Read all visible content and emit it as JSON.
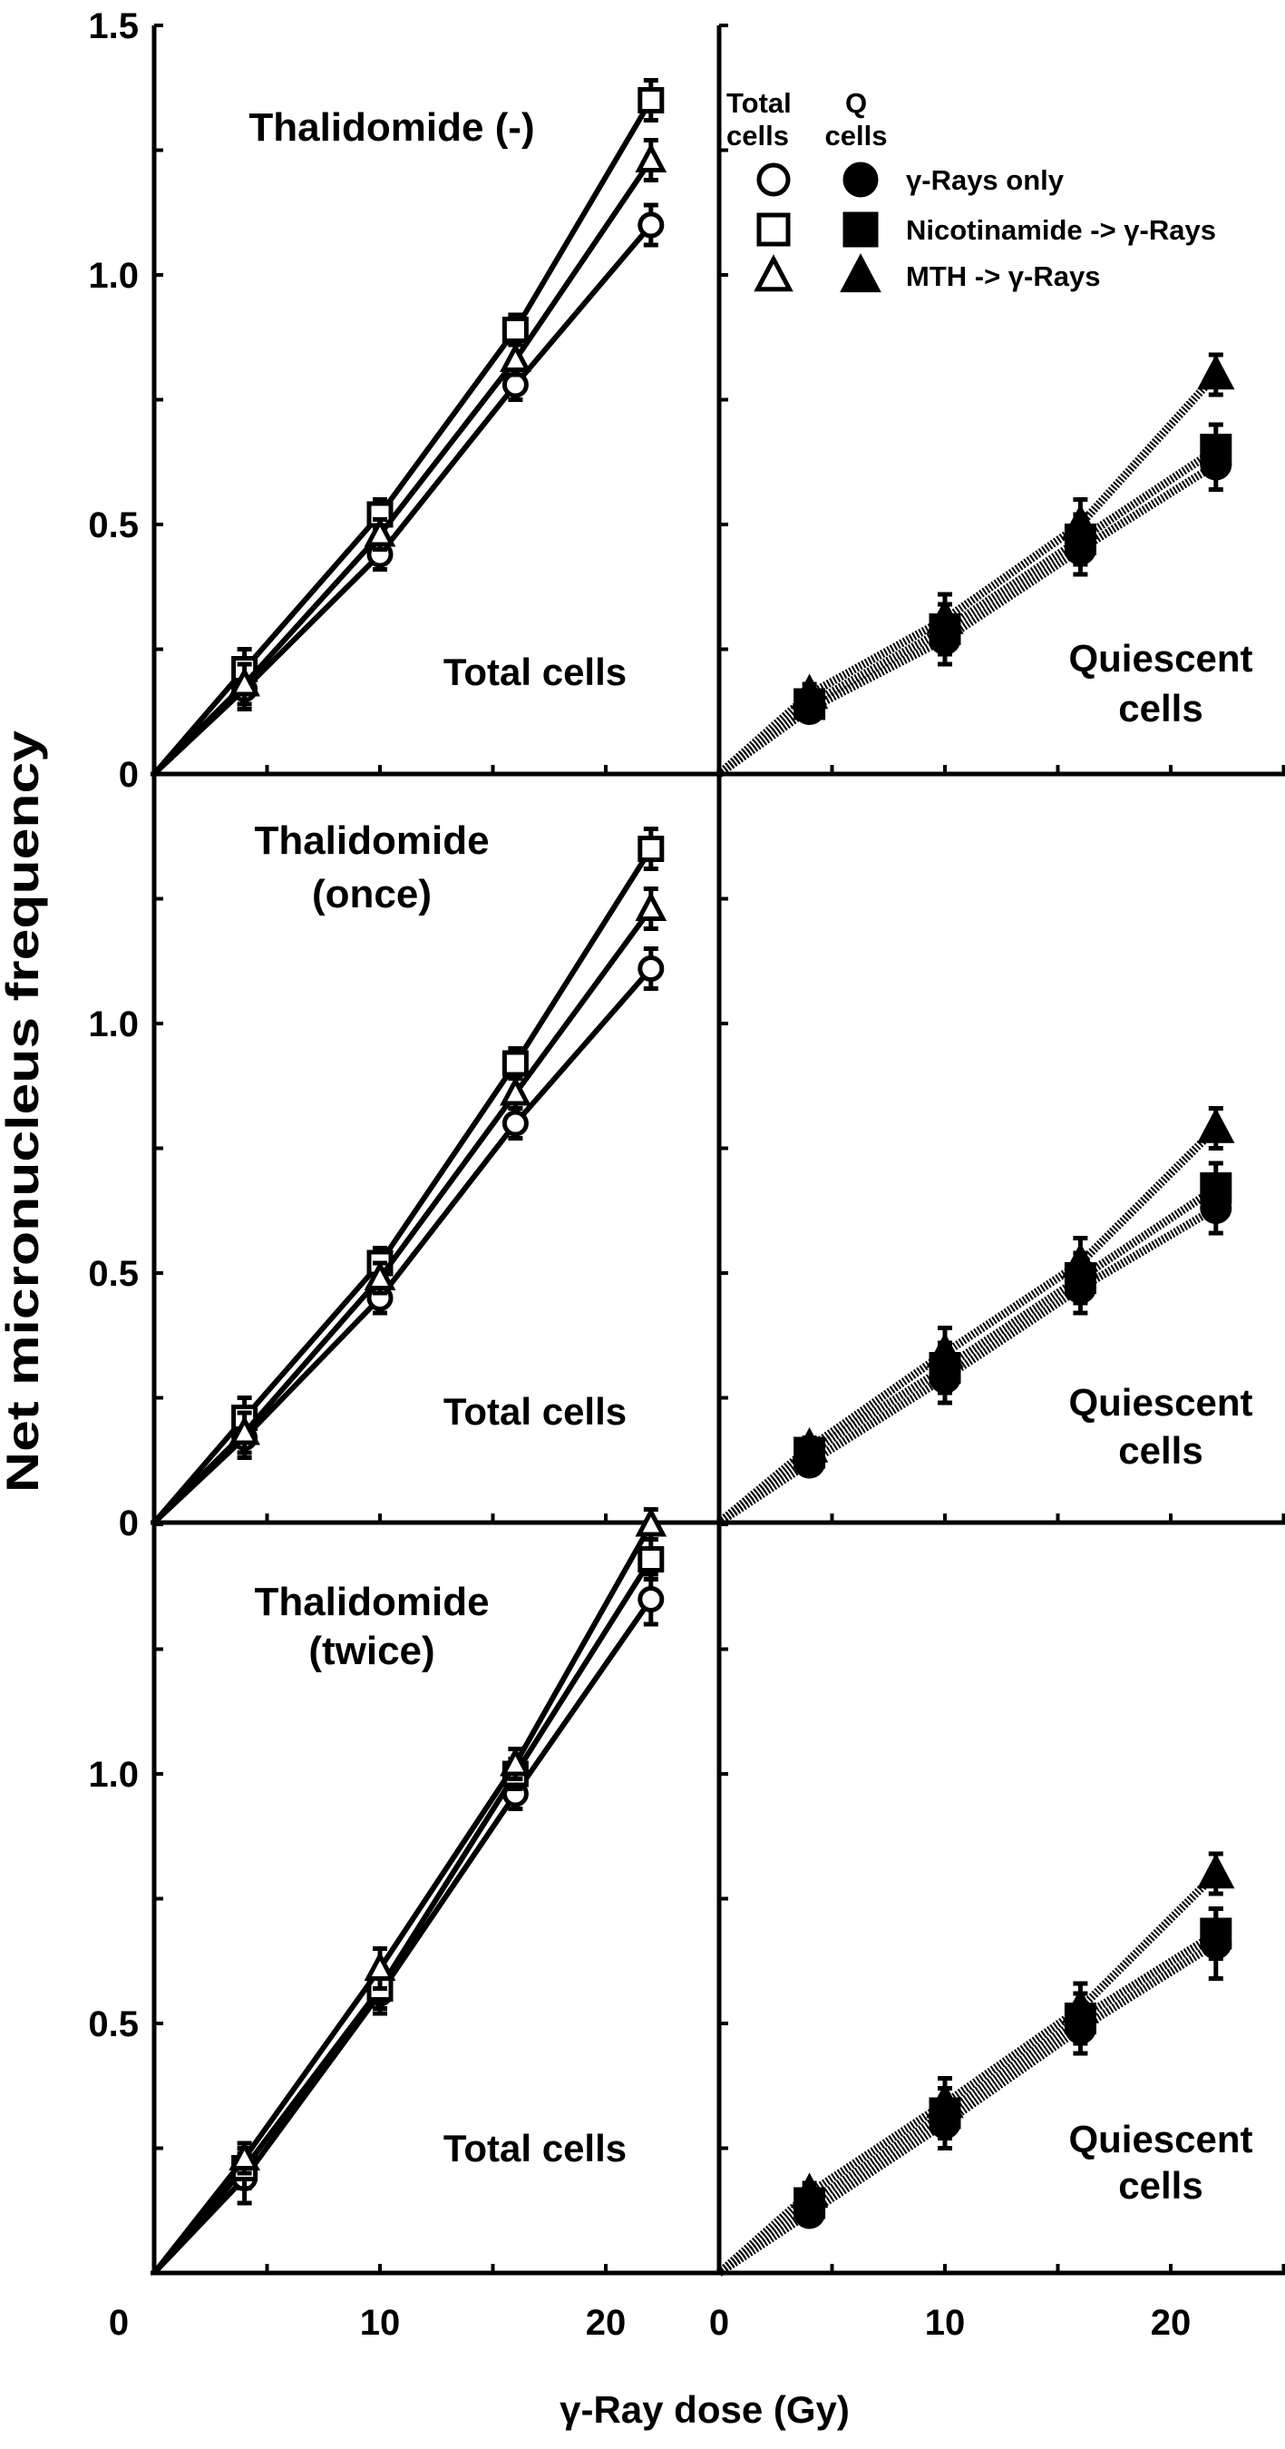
{
  "chart_data": {
    "type": "line",
    "ylabel": "Net micronucleus frequency",
    "xlabel": "γ-Ray dose (Gy)",
    "xlim": [
      0,
      25
    ],
    "ylim": [
      0,
      1.5
    ],
    "x_ticklabels": [
      "0",
      "10",
      "20"
    ],
    "legend": {
      "placement": "top-right panel",
      "header_total": [
        "Total",
        "cells"
      ],
      "header_q": [
        "Q",
        "cells"
      ],
      "entries": [
        {
          "label": "γ-Rays only",
          "marker": "circle"
        },
        {
          "label": "Nicotinamide -> γ-Rays",
          "marker": "square"
        },
        {
          "label": "MTH -> γ-Rays",
          "marker": "triangle"
        }
      ]
    },
    "panels": [
      {
        "row": 0,
        "col": 0,
        "title": [
          "Thalidomide (-)"
        ],
        "label": [
          "Total cells"
        ],
        "cells": "total",
        "yticklabels": [
          [
            "1.5",
            1.5
          ],
          [
            "1.0",
            1.0
          ],
          [
            "0.5",
            0.5
          ],
          [
            "0",
            0
          ]
        ],
        "x": [
          4,
          10,
          16,
          22
        ],
        "series": [
          {
            "name": "γ-Rays only",
            "marker": "circle",
            "y": [
              0.17,
              0.44,
              0.78,
              1.1
            ],
            "err": [
              0.04,
              0.03,
              0.03,
              0.04
            ]
          },
          {
            "name": "Nicotinamide -> γ-Rays",
            "marker": "square",
            "y": [
              0.21,
              0.52,
              0.89,
              1.35
            ],
            "err": [
              0.04,
              0.03,
              0.03,
              0.04
            ]
          },
          {
            "name": "MTH -> γ-Rays",
            "marker": "triangle",
            "y": [
              0.18,
              0.48,
              0.83,
              1.23
            ],
            "err": [
              0.04,
              0.03,
              0.03,
              0.04
            ]
          }
        ]
      },
      {
        "row": 0,
        "col": 1,
        "title": [],
        "label": [
          "Quiescent",
          "cells"
        ],
        "cells": "quiescent",
        "yticklabels": [],
        "x": [
          4,
          10,
          16,
          22
        ],
        "series": [
          {
            "name": "γ-Rays only",
            "marker": "circle",
            "y": [
              0.13,
              0.27,
              0.45,
              0.62
            ],
            "err": [
              0.02,
              0.05,
              0.05,
              0.05
            ]
          },
          {
            "name": "Nicotinamide -> γ-Rays",
            "marker": "square",
            "y": [
              0.14,
              0.29,
              0.47,
              0.65
            ],
            "err": [
              0.02,
              0.05,
              0.05,
              0.05
            ]
          },
          {
            "name": "MTH -> γ-Rays",
            "marker": "triangle",
            "y": [
              0.16,
              0.31,
              0.5,
              0.8
            ],
            "err": [
              0.02,
              0.05,
              0.05,
              0.04
            ]
          }
        ]
      },
      {
        "row": 1,
        "col": 0,
        "title": [
          "Thalidomide",
          "(once)"
        ],
        "label": [
          "Total cells"
        ],
        "cells": "total",
        "yticklabels": [
          [
            "1.0",
            1.0
          ],
          [
            "0.5",
            0.5
          ],
          [
            "0",
            0
          ]
        ],
        "x": [
          4,
          10,
          16,
          22
        ],
        "series": [
          {
            "name": "γ-Rays only",
            "marker": "circle",
            "y": [
              0.17,
              0.45,
              0.8,
              1.11
            ],
            "err": [
              0.04,
              0.03,
              0.03,
              0.04
            ]
          },
          {
            "name": "Nicotinamide -> γ-Rays",
            "marker": "square",
            "y": [
              0.21,
              0.52,
              0.92,
              1.35
            ],
            "err": [
              0.04,
              0.03,
              0.03,
              0.04
            ]
          },
          {
            "name": "MTH -> γ-Rays",
            "marker": "triangle",
            "y": [
              0.18,
              0.49,
              0.86,
              1.23
            ],
            "err": [
              0.04,
              0.03,
              0.03,
              0.04
            ]
          }
        ]
      },
      {
        "row": 1,
        "col": 1,
        "title": [],
        "label": [
          "Quiescent",
          "cells"
        ],
        "cells": "quiescent",
        "yticklabels": [],
        "x": [
          4,
          10,
          16,
          22
        ],
        "series": [
          {
            "name": "γ-Rays only",
            "marker": "circle",
            "y": [
              0.12,
              0.29,
              0.47,
              0.63
            ],
            "err": [
              0.02,
              0.05,
              0.05,
              0.05
            ]
          },
          {
            "name": "Nicotinamide -> γ-Rays",
            "marker": "square",
            "y": [
              0.14,
              0.31,
              0.49,
              0.67
            ],
            "err": [
              0.02,
              0.05,
              0.05,
              0.05
            ]
          },
          {
            "name": "MTH -> γ-Rays",
            "marker": "triangle",
            "y": [
              0.15,
              0.34,
              0.52,
              0.79
            ],
            "err": [
              0.02,
              0.05,
              0.05,
              0.04
            ]
          }
        ]
      },
      {
        "row": 2,
        "col": 0,
        "title": [
          "Thalidomide",
          "(twice)"
        ],
        "label": [
          "Total cells"
        ],
        "cells": "total",
        "yticklabels": [
          [
            "1.0",
            1.0
          ],
          [
            "0.5",
            0.5
          ]
        ],
        "x": [
          4,
          10,
          16,
          22
        ],
        "series": [
          {
            "name": "γ-Rays only",
            "marker": "circle",
            "y": [
              0.19,
              0.56,
              0.96,
              1.35
            ],
            "err": [
              0.05,
              0.04,
              0.03,
              0.05
            ]
          },
          {
            "name": "Nicotinamide -> γ-Rays",
            "marker": "square",
            "y": [
              0.21,
              0.57,
              1.0,
              1.43
            ],
            "err": [
              0.04,
              0.04,
              0.03,
              0.04
            ]
          },
          {
            "name": "MTH -> γ-Rays",
            "marker": "triangle",
            "y": [
              0.23,
              0.61,
              1.02,
              1.5
            ],
            "err": [
              0.03,
              0.04,
              0.03,
              0.03
            ]
          }
        ]
      },
      {
        "row": 2,
        "col": 1,
        "title": [],
        "label": [
          "Quiescent",
          "cells"
        ],
        "cells": "quiescent",
        "yticklabels": [],
        "x": [
          4,
          10,
          16,
          22
        ],
        "series": [
          {
            "name": "γ-Rays only",
            "marker": "circle",
            "y": [
              0.12,
              0.3,
              0.49,
              0.66
            ],
            "err": [
              0.02,
              0.05,
              0.05,
              0.07
            ]
          },
          {
            "name": "Nicotinamide -> γ-Rays",
            "marker": "square",
            "y": [
              0.14,
              0.32,
              0.51,
              0.68
            ],
            "err": [
              0.02,
              0.05,
              0.05,
              0.05
            ]
          },
          {
            "name": "MTH -> γ-Rays",
            "marker": "triangle",
            "y": [
              0.16,
              0.34,
              0.53,
              0.8
            ],
            "err": [
              0.02,
              0.05,
              0.05,
              0.04
            ]
          }
        ]
      }
    ]
  }
}
